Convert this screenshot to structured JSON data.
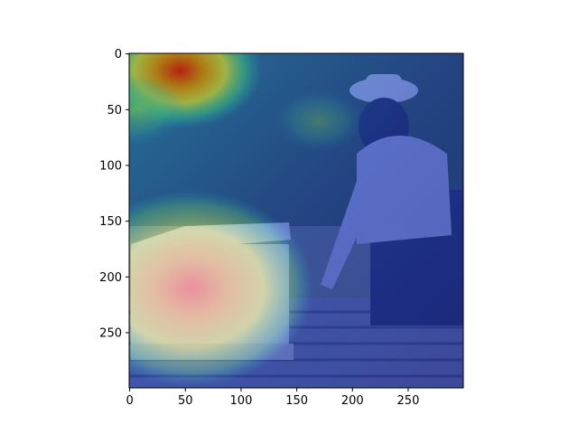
{
  "chart_data": {
    "type": "heatmap",
    "title": "",
    "xlabel": "",
    "ylabel": "",
    "xlim": [
      0,
      299
    ],
    "ylim": [
      299,
      0
    ],
    "x_ticks": [
      0,
      50,
      100,
      150,
      200,
      250
    ],
    "y_ticks": [
      0,
      50,
      100,
      150,
      200,
      250
    ],
    "image_size": [
      300,
      300
    ],
    "colormap": "jet",
    "overlay_opacity": 0.5,
    "background_image": "outdoor photo: beekeeper in protective hat and veil leaning on a truck bed, white beehive box in foreground, trees in background",
    "hotspots": [
      {
        "x": 45,
        "y": 15,
        "radius": 75,
        "intensity": 0.95
      },
      {
        "x": 5,
        "y": 50,
        "radius": 45,
        "intensity": 0.75
      },
      {
        "x": 55,
        "y": 210,
        "radius": 110,
        "intensity": 0.9
      },
      {
        "x": 170,
        "y": 60,
        "radius": 40,
        "intensity": 0.45
      }
    ]
  },
  "colors": {
    "axis": "#000000",
    "background": "#ffffff"
  }
}
